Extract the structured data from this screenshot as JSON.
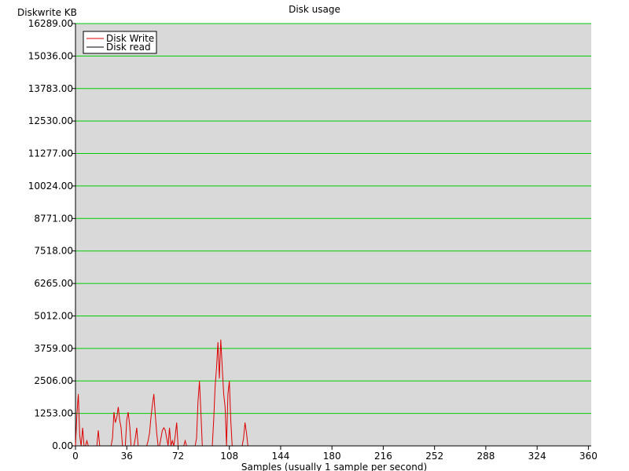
{
  "chart_data": {
    "type": "line",
    "title": "Disk usage",
    "ylabel": "Diskwrite KB",
    "xlabel": "Samples (usually 1 sample per second)",
    "xlim": [
      0,
      362
    ],
    "ylim": [
      0,
      16289
    ],
    "xticks": [
      "0",
      "36",
      "72",
      "108",
      "144",
      "180",
      "216",
      "252",
      "288",
      "324",
      "360"
    ],
    "yticks": [
      "0.00",
      "1253.00",
      "2506.00",
      "3759.00",
      "5012.00",
      "6265.00",
      "7518.00",
      "8771.00",
      "10024.00",
      "11277.00",
      "12530.00",
      "13783.00",
      "15036.00",
      "16289.00"
    ],
    "grid": true,
    "legend_position": "top-left",
    "plot_background": "#d9d9d9",
    "grid_color": "#00cc00",
    "series": [
      {
        "name": "Disk Write",
        "color": "#dd0000",
        "x": [
          0,
          1,
          2,
          3,
          4,
          5,
          6,
          7,
          8,
          9,
          10,
          11,
          12,
          13,
          14,
          15,
          16,
          17,
          18,
          19,
          20,
          21,
          22,
          23,
          24,
          25,
          26,
          27,
          28,
          29,
          30,
          31,
          32,
          33,
          34,
          35,
          36,
          37,
          38,
          39,
          40,
          41,
          42,
          43,
          44,
          45,
          46,
          47,
          48,
          49,
          50,
          51,
          52,
          53,
          54,
          55,
          56,
          57,
          58,
          59,
          60,
          61,
          62,
          63,
          64,
          65,
          66,
          67,
          68,
          69,
          70,
          71,
          72,
          73,
          74,
          75,
          76,
          77,
          78,
          79,
          80,
          81,
          82,
          83,
          84,
          85,
          86,
          87,
          88,
          89,
          90,
          91,
          92,
          93,
          94,
          95,
          96,
          97,
          98,
          99,
          100,
          101,
          102,
          103,
          104,
          105,
          106,
          107,
          108,
          109,
          110,
          111,
          112,
          113,
          114,
          115,
          116,
          117,
          118,
          119,
          120,
          121,
          122,
          123,
          124,
          125,
          126,
          127,
          128,
          129,
          130,
          131,
          132,
          133,
          134,
          135,
          136,
          137,
          138,
          139,
          140,
          141,
          142,
          143,
          144,
          145,
          146,
          147,
          148,
          149,
          150,
          151,
          152,
          153,
          154,
          155,
          156,
          157,
          158,
          159,
          160,
          161,
          162,
          163,
          164,
          165,
          166,
          167,
          168,
          169,
          170,
          171,
          172,
          173,
          174,
          175,
          176,
          177,
          178,
          179,
          180,
          181,
          182,
          183,
          184,
          185,
          186,
          187,
          188,
          189,
          190,
          191,
          192,
          193,
          194,
          195,
          196,
          197,
          198,
          199,
          200,
          201,
          202,
          203,
          204,
          205,
          206,
          207,
          208,
          209,
          210,
          211,
          212,
          213,
          214,
          215,
          216,
          217,
          218,
          219,
          220,
          221,
          222,
          223,
          224,
          225,
          226,
          227,
          228,
          229,
          230,
          231,
          232,
          233,
          234,
          235,
          236,
          237,
          238,
          239,
          240,
          241,
          242,
          243,
          244,
          245,
          246,
          247,
          248,
          249,
          250,
          251,
          252,
          253,
          254,
          255,
          256,
          257,
          258,
          259,
          260,
          261,
          262,
          263,
          264,
          265,
          266,
          267,
          268,
          269,
          270,
          271,
          272,
          273,
          274,
          275,
          276,
          277,
          278,
          279,
          280,
          281,
          282,
          283,
          284,
          285,
          286,
          287,
          288,
          289,
          290,
          291,
          292,
          293,
          294,
          295,
          296,
          297,
          298,
          299,
          300,
          301,
          302,
          303,
          304,
          305,
          306,
          307,
          308,
          309,
          310,
          311,
          312,
          313,
          314,
          315,
          316,
          317,
          318,
          319,
          320,
          321,
          322,
          323,
          324,
          325,
          326,
          327,
          328,
          329,
          330,
          331,
          332,
          333,
          334,
          335,
          336,
          337,
          338,
          339,
          340,
          341,
          342,
          343,
          344,
          345,
          346,
          347,
          348,
          349,
          350,
          351,
          352,
          353,
          354,
          355,
          356,
          357,
          358,
          359,
          360
        ],
        "y": [
          0,
          1200,
          2000,
          400,
          0,
          700,
          0,
          0,
          200,
          0,
          0,
          0,
          0,
          0,
          0,
          0,
          600,
          0,
          0,
          0,
          0,
          0,
          0,
          0,
          0,
          0,
          300,
          1300,
          900,
          1100,
          1500,
          1000,
          700,
          0,
          0,
          0,
          1000,
          1300,
          800,
          0,
          0,
          0,
          300,
          700,
          0,
          0,
          0,
          0,
          0,
          0,
          0,
          200,
          500,
          1100,
          1600,
          2000,
          1200,
          500,
          0,
          0,
          300,
          600,
          700,
          600,
          300,
          0,
          700,
          0,
          200,
          0,
          400,
          900,
          0,
          0,
          0,
          0,
          0,
          200,
          0,
          0,
          0,
          0,
          0,
          0,
          0,
          300,
          1700,
          2500,
          1300,
          0,
          0,
          0,
          0,
          0,
          0,
          0,
          0,
          1000,
          2300,
          3000,
          4000,
          2600,
          4100,
          3000,
          2000,
          1500,
          0,
          2000,
          2500,
          1000,
          0,
          0,
          0,
          0,
          0,
          0,
          0,
          0,
          300,
          900,
          500,
          0,
          0,
          0,
          0,
          0,
          0,
          0,
          0,
          0,
          0,
          0,
          0,
          0,
          0,
          0,
          0,
          0,
          0,
          0,
          0,
          0,
          0,
          0,
          0,
          0,
          0,
          0,
          0,
          0,
          0,
          0,
          0,
          0,
          0,
          0,
          0,
          0,
          0,
          0,
          0,
          0,
          0,
          0,
          0,
          0,
          0,
          0,
          0,
          0,
          0,
          0,
          0,
          0,
          0,
          0,
          0,
          0,
          0,
          0,
          0,
          0,
          0,
          0,
          0,
          0,
          0,
          0,
          0,
          0,
          0,
          0,
          0,
          0,
          0,
          0,
          0,
          0,
          0,
          0,
          0,
          0,
          0,
          0,
          0,
          0,
          0,
          0,
          0,
          0,
          0,
          0,
          0,
          0,
          0,
          0,
          0,
          0,
          0,
          0,
          0,
          0,
          0,
          0,
          0,
          0,
          0,
          0,
          0,
          0,
          0,
          0,
          0,
          0,
          0,
          0,
          0,
          0,
          0,
          0,
          0,
          0,
          0,
          0,
          0,
          0,
          0,
          0,
          0,
          0,
          0,
          0,
          0,
          0,
          0,
          0,
          0,
          0,
          0,
          0,
          0,
          0,
          0,
          0,
          0,
          0,
          0,
          0,
          0,
          0,
          0,
          0,
          0,
          0,
          0,
          0,
          0,
          0,
          0,
          0,
          0,
          0,
          0,
          0,
          0,
          0,
          0,
          0,
          0,
          0,
          0,
          0,
          0,
          0,
          0,
          0,
          0,
          0,
          0,
          0,
          0,
          0,
          0,
          0,
          0,
          0,
          0,
          0,
          0,
          0,
          0,
          0,
          0,
          0,
          0,
          0,
          0,
          0,
          0,
          0,
          0,
          0,
          0,
          0,
          0,
          0,
          0,
          0,
          0,
          0,
          0,
          0,
          0,
          0,
          0,
          0,
          0,
          0,
          0,
          0,
          0,
          0,
          0,
          0,
          0,
          0,
          0,
          0,
          0,
          0,
          0,
          0,
          0,
          0,
          0,
          0,
          0,
          0,
          0,
          0,
          0
        ]
      },
      {
        "name": "Disk read",
        "color": "#000000",
        "x": [
          0,
          360
        ],
        "y": [
          0,
          0
        ]
      }
    ]
  }
}
